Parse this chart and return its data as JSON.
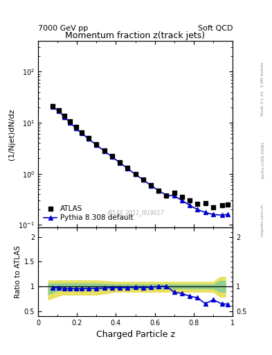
{
  "title": "Momentum fraction z(track jets)",
  "top_left_label": "7000 GeV pp",
  "top_right_label": "Soft QCD",
  "ylabel_main": "(1/Njet)dN/dz",
  "ylabel_ratio": "Ratio to ATLAS",
  "xlabel": "Charged Particle z",
  "watermark": "ATLAS_2011_I919017",
  "right_label_top": "Rivet 3.1.10,  3.4M events",
  "right_label_mid": "[arXiv:1306.3436]",
  "right_label_bot": "mcplots.cern.ch",
  "atlas_x": [
    0.075,
    0.105,
    0.135,
    0.165,
    0.195,
    0.225,
    0.26,
    0.3,
    0.34,
    0.38,
    0.42,
    0.46,
    0.5,
    0.54,
    0.58,
    0.62,
    0.66,
    0.7,
    0.74,
    0.78,
    0.82,
    0.86,
    0.9,
    0.945,
    0.975
  ],
  "atlas_y": [
    21.0,
    17.5,
    13.5,
    10.5,
    8.2,
    6.5,
    5.0,
    3.8,
    2.9,
    2.2,
    1.7,
    1.3,
    1.0,
    0.78,
    0.6,
    0.47,
    0.38,
    0.42,
    0.35,
    0.3,
    0.26,
    0.27,
    0.22,
    0.24,
    0.25
  ],
  "pythia_x": [
    0.075,
    0.105,
    0.135,
    0.165,
    0.195,
    0.225,
    0.26,
    0.3,
    0.34,
    0.38,
    0.42,
    0.46,
    0.5,
    0.54,
    0.58,
    0.62,
    0.66,
    0.7,
    0.74,
    0.78,
    0.82,
    0.86,
    0.9,
    0.945,
    0.975
  ],
  "pythia_y": [
    20.5,
    17.0,
    13.0,
    10.0,
    7.8,
    6.2,
    4.8,
    3.65,
    2.8,
    2.15,
    1.65,
    1.27,
    0.98,
    0.76,
    0.59,
    0.47,
    0.38,
    0.37,
    0.3,
    0.24,
    0.2,
    0.175,
    0.16,
    0.155,
    0.16
  ],
  "ratio_pythia_x": [
    0.075,
    0.105,
    0.135,
    0.165,
    0.195,
    0.225,
    0.26,
    0.3,
    0.34,
    0.38,
    0.42,
    0.46,
    0.5,
    0.54,
    0.58,
    0.62,
    0.66,
    0.7,
    0.74,
    0.78,
    0.82,
    0.86,
    0.9,
    0.945,
    0.975
  ],
  "ratio_pythia_y": [
    0.976,
    0.971,
    0.963,
    0.955,
    0.952,
    0.954,
    0.96,
    0.961,
    0.966,
    0.977,
    0.971,
    0.977,
    0.98,
    0.976,
    0.983,
    1.0,
    1.0,
    0.881,
    0.857,
    0.8,
    0.769,
    0.648,
    0.727,
    0.646,
    0.64
  ],
  "band_x": [
    0.05,
    0.12,
    0.2,
    0.3,
    0.4,
    0.5,
    0.6,
    0.7,
    0.8,
    0.9,
    0.935,
    0.965
  ],
  "band_green_upper": [
    1.07,
    1.07,
    1.07,
    1.07,
    1.05,
    1.05,
    1.05,
    1.05,
    1.05,
    1.05,
    1.12,
    1.12
  ],
  "band_green_lower": [
    0.83,
    0.93,
    0.93,
    0.93,
    0.95,
    0.95,
    0.95,
    0.95,
    0.95,
    0.95,
    0.88,
    0.88
  ],
  "band_yellow_upper": [
    1.13,
    1.13,
    1.13,
    1.13,
    1.1,
    1.1,
    1.1,
    1.1,
    1.1,
    1.1,
    1.2,
    1.2
  ],
  "band_yellow_lower": [
    0.72,
    0.82,
    0.82,
    0.82,
    0.88,
    0.88,
    0.88,
    0.88,
    0.88,
    0.88,
    0.78,
    0.78
  ],
  "atlas_color": "black",
  "pythia_color": "#0000cc",
  "green_band_color": "#90d090",
  "yellow_band_color": "#e8e060",
  "ylim_main": [
    0.09,
    400
  ],
  "ylim_ratio": [
    0.4,
    2.2
  ],
  "xlim": [
    0.0,
    1.0
  ],
  "yticks_main_major": [
    0.1,
    1,
    10,
    100
  ],
  "yticks_ratio": [
    0.5,
    1.0,
    1.5,
    2.0
  ],
  "xticks": [
    0.0,
    0.2,
    0.4,
    0.6,
    0.8,
    1.0
  ]
}
